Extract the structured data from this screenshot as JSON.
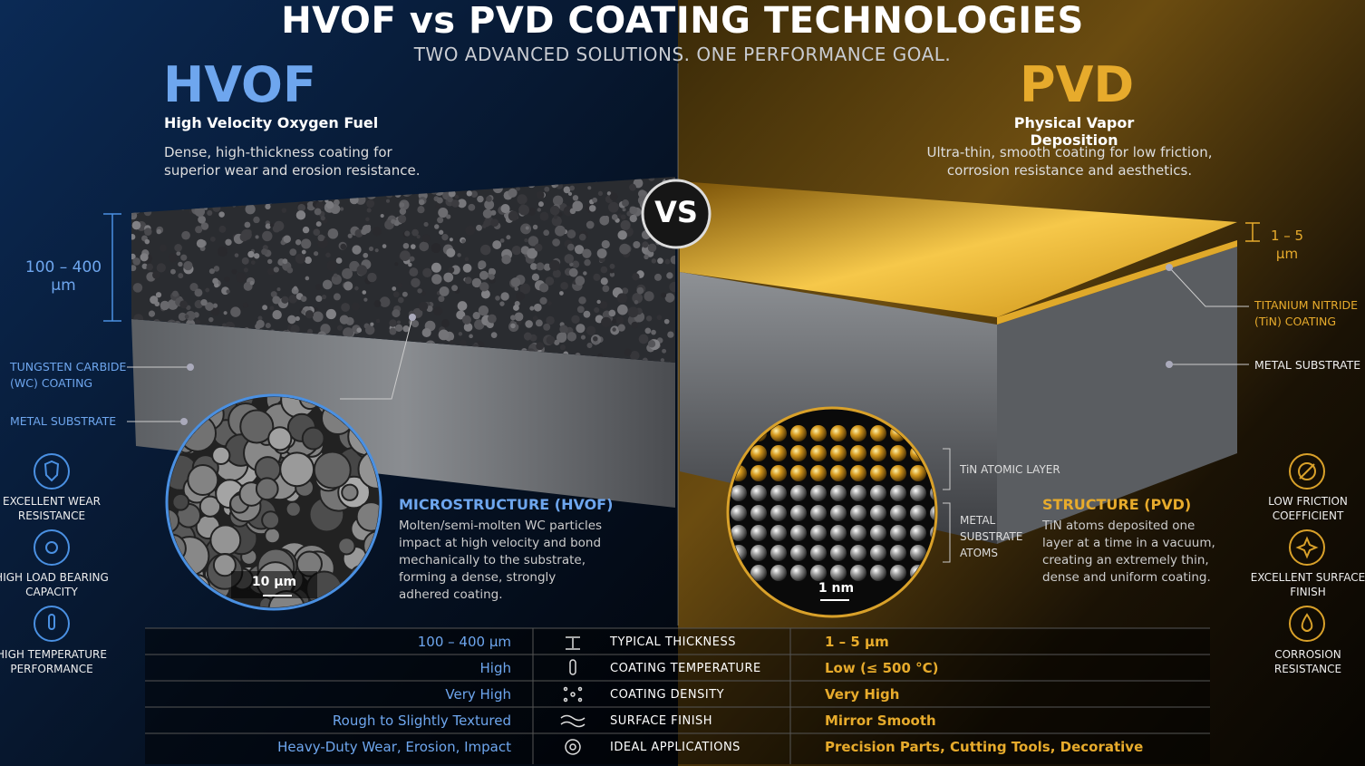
{
  "header": {
    "title": "HVOF vs PVD COATING TECHNOLOGIES",
    "subtitle": "TWO ADVANCED SOLUTIONS. ONE PERFORMANCE GOAL.",
    "vs": "VS"
  },
  "hvof": {
    "name": "HVOF",
    "full_name": "High Velocity Oxygen Fuel",
    "description": "Dense, high-thickness coating for superior wear and erosion resistance.",
    "thickness": "100 – 400 µm",
    "coating_label": "TUNGSTEN CARBIDE (WC) COATING",
    "substrate_label": "METAL SUBSTRATE",
    "scale": "10 µm",
    "structure_title": "MICROSTRUCTURE (HVOF)",
    "structure_text": "Molten/semi-molten WC particles impact at high velocity and bond mechanically to the substrate, forming a dense, strongly adhered coating.",
    "features": [
      "EXCELLENT WEAR RESISTANCE",
      "HIGH LOAD BEARING CAPACITY",
      "HIGH TEMPERATURE PERFORMANCE"
    ]
  },
  "pvd": {
    "name": "PVD",
    "full_name": "Physical Vapor Deposition",
    "description": "Ultra-thin, smooth coating for low friction, corrosion resistance and aesthetics.",
    "thickness": "1 – 5 µm",
    "coating_label": "TITANIUM NITRIDE (TiN) COATING",
    "substrate_label": "METAL SUBSTRATE",
    "scale": "1 nm",
    "atomic_layer_label": "TiN ATOMIC LAYER",
    "substrate_atoms_label": "METAL SUBSTRATE ATOMS",
    "structure_title": "STRUCTURE (PVD)",
    "structure_text": "TiN atoms deposited one layer at a time in a vacuum, creating an extremely thin, dense and uniform coating.",
    "features": [
      "LOW FRICTION COEFFICIENT",
      "EXCELLENT SURFACE FINISH",
      "CORROSION RESISTANCE"
    ]
  },
  "table": {
    "rows": [
      [
        "100 – 400 µm",
        "TYPICAL THICKNESS",
        "1 – 5 µm"
      ],
      [
        "High",
        "COATING TEMPERATURE",
        "Low (≤ 500 °C)"
      ],
      [
        "Very High",
        "COATING DENSITY",
        "Very High"
      ],
      [
        "Rough to Slightly Textured",
        "SURFACE FINISH",
        "Mirror Smooth"
      ],
      [
        "Heavy-Duty Wear, Erosion, Impact",
        "IDEAL APPLICATIONS",
        "Precision Parts, Cutting Tools, Decorative"
      ]
    ]
  }
}
